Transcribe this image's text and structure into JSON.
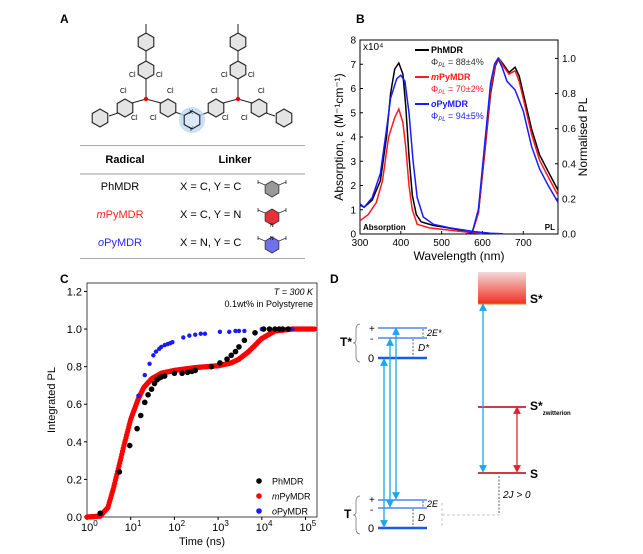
{
  "panels": {
    "a": "A",
    "b": "B",
    "c": "C",
    "d": "D"
  },
  "molecule": {
    "cl": "Cl",
    "x": "X",
    "y": "Y"
  },
  "table": {
    "headers": {
      "radical": "Radical",
      "linker": "Linker"
    },
    "rows": [
      {
        "radical": "PhMDR",
        "linker": "X = C, Y = C",
        "color": "#000000",
        "ring_fill": "#999999",
        "ring_n": ""
      },
      {
        "radical_prefix": "m",
        "radical": "PyMDR",
        "linker": "X = C, Y = N",
        "color": "#ff2020",
        "ring_fill": "#e8303a",
        "ring_n": "N"
      },
      {
        "radical_prefix": "o",
        "radical": "PyMDR",
        "linker": "X = N, Y = C",
        "color": "#2a2aff",
        "ring_fill": "#7070ee",
        "ring_n": "N"
      }
    ]
  },
  "chart_data": [
    {
      "type": "line",
      "title": "",
      "xlabel": "Wavelength (nm)",
      "ylabel": "Absorption, ε (M⁻¹cm⁻¹)",
      "ylabel_right": "Normalised PL",
      "y_multiplier": "x10⁴",
      "xlim": [
        300,
        785
      ],
      "ylim": [
        0,
        8
      ],
      "ylim_right": [
        0,
        1.105
      ],
      "xticks": [
        300,
        400,
        500,
        600,
        700
      ],
      "yticks": [
        0,
        1,
        2,
        3,
        4,
        5,
        6,
        7,
        8
      ],
      "yticks_right": [
        "0.0",
        "0.2",
        "0.4",
        "0.6",
        "0.8",
        "1.0"
      ],
      "corner_labels": {
        "left": "Absorption",
        "right": "PL"
      },
      "legend_position": "top-center",
      "series": [
        {
          "name": "PhMDR",
          "name_prefix": "",
          "qy": "Φ",
          "qy_sub": "PL",
          "qy_value": " = 88±4%",
          "color": "#000000",
          "qy_color": "#333333",
          "absorption": [
            [
              300,
              1.2
            ],
            [
              310,
              1.1
            ],
            [
              330,
              1.4
            ],
            [
              350,
              2.2
            ],
            [
              365,
              4.0
            ],
            [
              375,
              5.8
            ],
            [
              385,
              6.8
            ],
            [
              395,
              7.05
            ],
            [
              405,
              6.6
            ],
            [
              412,
              5.3
            ],
            [
              420,
              3.2
            ],
            [
              428,
              1.6
            ],
            [
              438,
              0.8
            ],
            [
              450,
              0.5
            ],
            [
              480,
              0.35
            ],
            [
              500,
              0.3
            ],
            [
              550,
              0.15
            ],
            [
              580,
              0.05
            ],
            [
              600,
              0.02
            ]
          ],
          "pl": [
            [
              560,
              0
            ],
            [
              575,
              0.01
            ],
            [
              590,
              0.12
            ],
            [
              605,
              0.45
            ],
            [
              620,
              0.8
            ],
            [
              632,
              0.96
            ],
            [
              640,
              1.0
            ],
            [
              650,
              0.97
            ],
            [
              665,
              0.92
            ],
            [
              680,
              0.95
            ],
            [
              690,
              0.9
            ],
            [
              700,
              0.8
            ],
            [
              720,
              0.6
            ],
            [
              740,
              0.45
            ],
            [
              760,
              0.36
            ],
            [
              785,
              0.25
            ]
          ]
        },
        {
          "name": "PyMDR",
          "name_prefix": "m",
          "qy": "Φ",
          "qy_sub": "PL",
          "qy_value": " = 70±2%",
          "color": "#ff1a1a",
          "qy_color": "#ff1a1a",
          "absorption": [
            [
              300,
              0.55
            ],
            [
              320,
              0.8
            ],
            [
              340,
              1.3
            ],
            [
              355,
              2.2
            ],
            [
              370,
              4.0
            ],
            [
              385,
              4.8
            ],
            [
              395,
              5.15
            ],
            [
              405,
              4.6
            ],
            [
              412,
              3.6
            ],
            [
              420,
              2.0
            ],
            [
              428,
              1.0
            ],
            [
              440,
              0.4
            ],
            [
              470,
              0.25
            ],
            [
              500,
              0.2
            ],
            [
              550,
              0.1
            ],
            [
              580,
              0.05
            ],
            [
              600,
              0.02
            ]
          ],
          "pl": [
            [
              560,
              0
            ],
            [
              575,
              0.01
            ],
            [
              590,
              0.12
            ],
            [
              605,
              0.46
            ],
            [
              620,
              0.82
            ],
            [
              632,
              0.97
            ],
            [
              640,
              1.0
            ],
            [
              650,
              0.96
            ],
            [
              665,
              0.91
            ],
            [
              680,
              0.93
            ],
            [
              690,
              0.87
            ],
            [
              700,
              0.77
            ],
            [
              720,
              0.57
            ],
            [
              740,
              0.42
            ],
            [
              760,
              0.33
            ],
            [
              785,
              0.22
            ]
          ]
        },
        {
          "name": "PyMDR",
          "name_prefix": "o",
          "qy": "Φ",
          "qy_sub": "PL",
          "qy_value": " = 94±5%",
          "color": "#1a1aff",
          "qy_color": "#1a1aff",
          "absorption": [
            [
              300,
              1.25
            ],
            [
              310,
              1.1
            ],
            [
              330,
              1.5
            ],
            [
              350,
              2.5
            ],
            [
              365,
              4.3
            ],
            [
              375,
              5.6
            ],
            [
              390,
              6.4
            ],
            [
              400,
              6.55
            ],
            [
              410,
              6.3
            ],
            [
              420,
              5.0
            ],
            [
              430,
              3.0
            ],
            [
              440,
              1.5
            ],
            [
              455,
              0.7
            ],
            [
              480,
              0.4
            ],
            [
              520,
              0.25
            ],
            [
              580,
              0.1
            ],
            [
              620,
              0.03
            ],
            [
              650,
              0.01
            ]
          ],
          "pl": [
            [
              560,
              0
            ],
            [
              575,
              0.01
            ],
            [
              590,
              0.14
            ],
            [
              605,
              0.5
            ],
            [
              620,
              0.86
            ],
            [
              630,
              0.97
            ],
            [
              638,
              1.0
            ],
            [
              648,
              0.95
            ],
            [
              660,
              0.87
            ],
            [
              680,
              0.82
            ],
            [
              700,
              0.7
            ],
            [
              720,
              0.5
            ],
            [
              740,
              0.37
            ],
            [
              760,
              0.28
            ],
            [
              785,
              0.18
            ]
          ]
        }
      ]
    },
    {
      "type": "scatter",
      "title": "",
      "annotation_line1": "T = 300 K",
      "annotation_line2": "0.1wt% in Polystyrene",
      "xlabel": "Time (ns)",
      "ylabel": "Integrated PL",
      "xscale": "log",
      "xlim": [
        1,
        180000
      ],
      "ylim": [
        0,
        1.245
      ],
      "xticks": [
        1,
        10,
        100,
        1000,
        10000,
        100000
      ],
      "xtick_labels": [
        [
          "10",
          "0"
        ],
        [
          "10",
          "1"
        ],
        [
          "10",
          "2"
        ],
        [
          "10",
          "3"
        ],
        [
          "10",
          "4"
        ],
        [
          "10",
          "5"
        ]
      ],
      "yticks": [
        "0.0",
        "0.2",
        "0.4",
        "0.6",
        "0.8",
        "1.0",
        "1.2"
      ],
      "legend_position": "bottom-right",
      "series": [
        {
          "name": "PhMDR",
          "name_prefix": "",
          "color": "#000000",
          "points": [
            [
              2,
              0.02
            ],
            [
              5.5,
              0.24
            ],
            [
              9.5,
              0.38
            ],
            [
              14,
              0.47
            ],
            [
              17,
              0.54
            ],
            [
              21,
              0.61
            ],
            [
              25,
              0.65
            ],
            [
              30,
              0.68
            ],
            [
              35,
              0.71
            ],
            [
              40,
              0.73
            ],
            [
              45,
              0.74
            ],
            [
              50,
              0.745
            ],
            [
              60,
              0.75
            ],
            [
              100,
              0.765
            ],
            [
              150,
              0.765
            ],
            [
              200,
              0.77
            ],
            [
              250,
              0.775
            ],
            [
              300,
              0.78
            ],
            [
              700,
              0.8
            ],
            [
              1100,
              0.82
            ],
            [
              1600,
              0.84
            ],
            [
              2000,
              0.86
            ],
            [
              2500,
              0.88
            ],
            [
              3000,
              0.905
            ],
            [
              4000,
              0.94
            ],
            [
              7000,
              0.98
            ],
            [
              11000,
              1.0
            ],
            [
              15000,
              1.0
            ],
            [
              20000,
              1.0
            ],
            [
              25000,
              1.0
            ],
            [
              30000,
              1.0
            ],
            [
              40000,
              1.0
            ]
          ]
        },
        {
          "name": "PyMDR",
          "name_prefix": "m",
          "color": "#ff0000",
          "points": [
            [
              1,
              0.0
            ],
            [
              2,
              0.005
            ],
            [
              3,
              0.05
            ],
            [
              4,
              0.15
            ],
            [
              5,
              0.24
            ],
            [
              7,
              0.38
            ],
            [
              10,
              0.52
            ],
            [
              15,
              0.63
            ],
            [
              20,
              0.69
            ],
            [
              30,
              0.735
            ],
            [
              50,
              0.765
            ],
            [
              100,
              0.78
            ],
            [
              300,
              0.795
            ],
            [
              1000,
              0.805
            ],
            [
              2000,
              0.82
            ],
            [
              3000,
              0.84
            ],
            [
              5000,
              0.88
            ],
            [
              10000,
              0.95
            ],
            [
              20000,
              0.99
            ],
            [
              50000,
              1.0
            ],
            [
              180000,
              1.0
            ]
          ]
        },
        {
          "name": "PyMDR",
          "name_prefix": "o",
          "color": "#1a1aff",
          "points": [
            [
              15,
              0.645
            ],
            [
              21,
              0.755
            ],
            [
              27,
              0.815
            ],
            [
              33,
              0.86
            ],
            [
              38,
              0.88
            ],
            [
              45,
              0.895
            ],
            [
              50,
              0.905
            ],
            [
              60,
              0.915
            ],
            [
              70,
              0.92
            ],
            [
              80,
              0.925
            ],
            [
              90,
              0.93
            ],
            [
              160,
              0.955
            ],
            [
              220,
              0.965
            ],
            [
              300,
              0.97
            ],
            [
              400,
              0.975
            ],
            [
              500,
              0.975
            ],
            [
              1100,
              0.985
            ],
            [
              1800,
              0.985
            ],
            [
              2500,
              0.99
            ],
            [
              3000,
              0.99
            ],
            [
              4000,
              0.99
            ],
            [
              10000,
              1.0
            ],
            [
              50000,
              1.0
            ]
          ]
        }
      ]
    }
  ],
  "diagram": {
    "t_star": "T*",
    "t": "T",
    "plus": "+",
    "minus": "-",
    "zero": "0",
    "two_e_star": "2E*",
    "d_star": "D*",
    "two_e": "2E",
    "d": "D",
    "s_star": "S*",
    "s_star_zw": "S*",
    "zw_sub": "zwitterion",
    "s": "S",
    "two_j": "2J > 0"
  }
}
